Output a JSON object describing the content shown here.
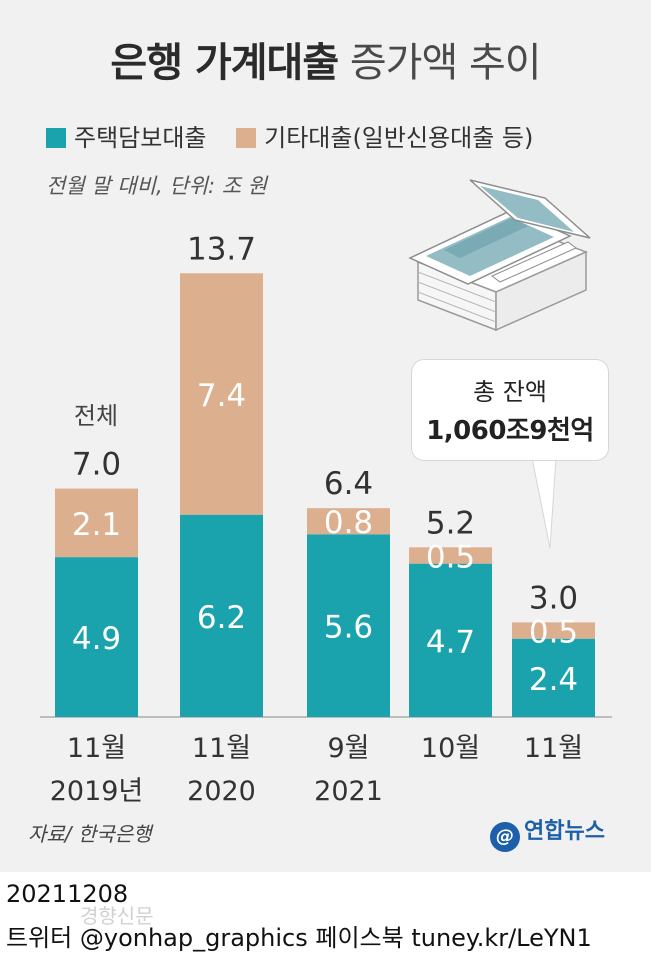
{
  "header": {
    "title_bold": "은행 가계대출",
    "title_light": "증가액 추이"
  },
  "legend": {
    "item1": "주택담보대출",
    "item2": "기타대출(일반신용대출 등)"
  },
  "subtitle": "전월 말 대비, 단위: 조 원",
  "total_annotation": "전체",
  "callout": {
    "line1": "총 잔액",
    "line2": "1,060조9천억"
  },
  "colors": {
    "mortgage": "#1aa2ad",
    "other": "#dcaf8f",
    "panel": "#f1f1f1"
  },
  "chart_data": {
    "type": "bar",
    "stacked": true,
    "categories": [
      [
        "11월",
        "2019년"
      ],
      [
        "11월",
        "2020"
      ],
      [
        "9월",
        "2021"
      ],
      [
        "10월",
        ""
      ],
      [
        "11월",
        ""
      ]
    ],
    "series": [
      {
        "name": "주택담보대출",
        "values": [
          4.9,
          6.2,
          5.6,
          4.7,
          2.4
        ]
      },
      {
        "name": "기타대출(일반신용대출 등)",
        "values": [
          2.1,
          7.4,
          0.8,
          0.5,
          0.5
        ]
      }
    ],
    "totals": [
      7.0,
      13.7,
      6.4,
      5.2,
      3.0
    ],
    "value_labels": {
      "mortgage": [
        "4.9",
        "6.2",
        "5.6",
        "4.7",
        "2.4"
      ],
      "other": [
        "2.1",
        "7.4",
        "0.8",
        "0.5",
        "0.5"
      ],
      "totals": [
        "7.0",
        "13.7",
        "6.4",
        "5.2",
        "3.0"
      ]
    },
    "ylim": [
      0,
      13.7
    ],
    "grid": false
  },
  "footer": {
    "source": "자료/ 한국은행",
    "brand": "연합뉴스",
    "date": "20211208",
    "credit": "트위터 @yonhap_graphics  페이스북 tuney.kr/LeYN1",
    "watermark": "경향신문"
  }
}
